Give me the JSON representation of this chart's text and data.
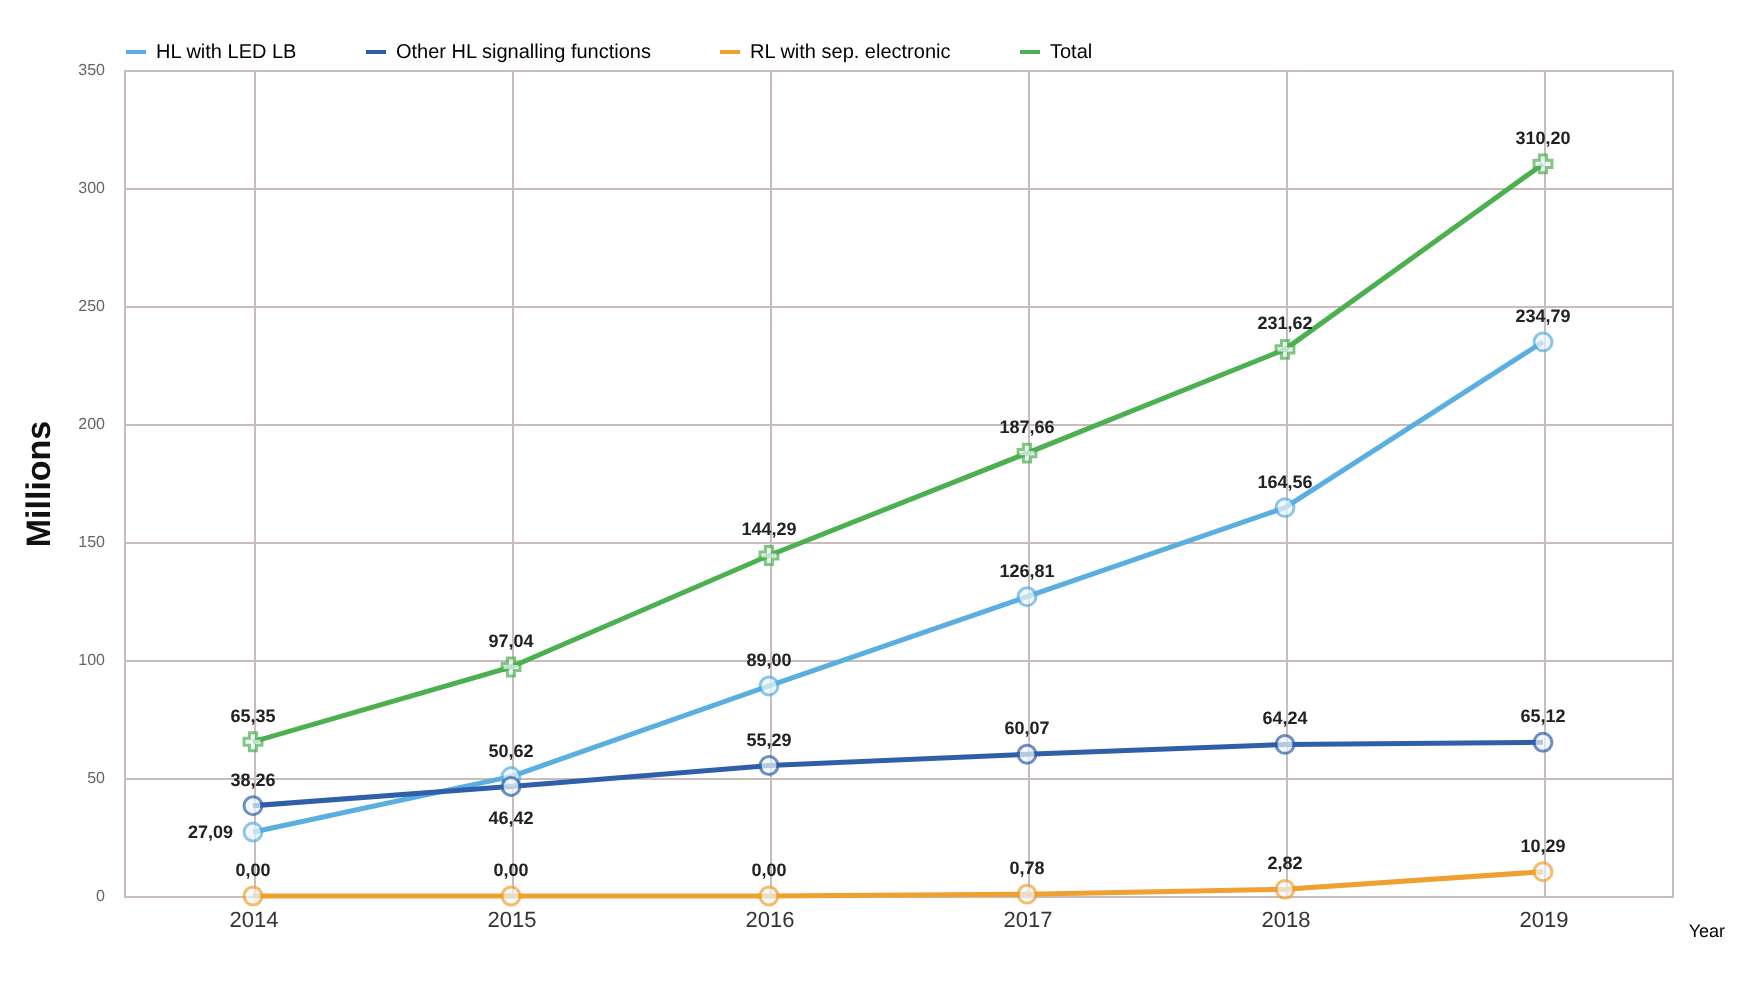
{
  "chart_data": {
    "type": "line",
    "xlabel": "Year",
    "ylabel": "Millions",
    "categories": [
      "2014",
      "2015",
      "2016",
      "2017",
      "2018",
      "2019"
    ],
    "ylim": [
      0,
      350
    ],
    "yticks": [
      0,
      50,
      100,
      150,
      200,
      250,
      300,
      350
    ],
    "grid": true,
    "legend": "top",
    "marker": "circle",
    "line_style": "solid",
    "series": [
      {
        "name": "HL with LED LB",
        "color": "#5aaee0",
        "values": [
          27.09,
          50.62,
          89.0,
          126.81,
          164.56,
          234.79
        ],
        "value_labels": [
          "27,09",
          "50,62",
          "89,00",
          "126,81",
          "164,56",
          "234,79"
        ]
      },
      {
        "name": "Other HL signalling functions",
        "color": "#2f5fa8",
        "values": [
          38.26,
          46.42,
          55.29,
          60.07,
          64.24,
          65.12
        ],
        "value_labels": [
          "38,26",
          "46,42",
          "55,29",
          "60,07",
          "64,24",
          "65,12"
        ]
      },
      {
        "name": "RL with sep. electronic",
        "color": "#f0a030",
        "values": [
          0,
          0,
          0,
          0.78,
          2.82,
          10.29
        ],
        "value_labels": [
          "0,00",
          "0,00",
          "0,00",
          "0,78",
          "2,82",
          "10,29"
        ]
      },
      {
        "name": "Total",
        "color": "#4caf50",
        "marker": "cross",
        "values": [
          65.35,
          97.04,
          144.29,
          187.66,
          231.62,
          310.2
        ],
        "value_labels": [
          "65,35",
          "97,04",
          "144,29",
          "187,66",
          "231,62",
          "310,20"
        ]
      }
    ]
  }
}
